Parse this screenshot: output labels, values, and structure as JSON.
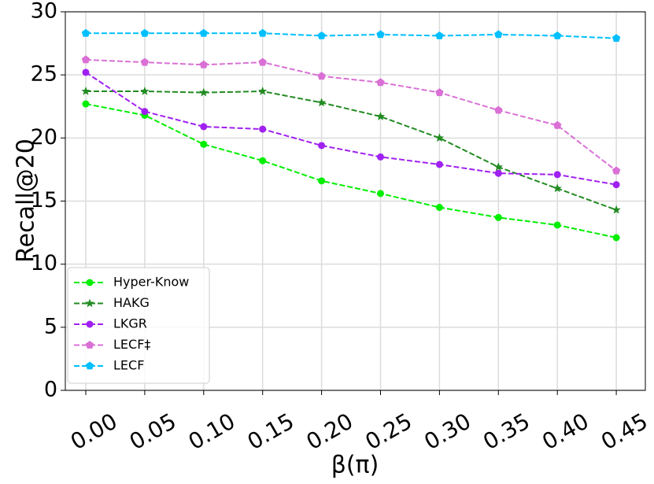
{
  "chart_data": {
    "type": "line",
    "xlabel": "β(π)",
    "ylabel": "Recall@20",
    "categories": [
      "0.00",
      "0.05",
      "0.10",
      "0.15",
      "0.20",
      "0.25",
      "0.30",
      "0.35",
      "0.40",
      "0.45"
    ],
    "series": [
      {
        "name": "Hyper-Know",
        "color": "#00ee00",
        "marker": "circle",
        "values": [
          22.7,
          21.8,
          19.5,
          18.2,
          16.6,
          15.6,
          14.5,
          13.7,
          13.1,
          12.1
        ]
      },
      {
        "name": "HAKG",
        "color": "#228b22",
        "marker": "star",
        "values": [
          23.7,
          23.7,
          23.6,
          23.7,
          22.8,
          21.7,
          20.0,
          17.7,
          16.0,
          14.3
        ]
      },
      {
        "name": "LKGR",
        "color": "#a020f0",
        "marker": "circle",
        "values": [
          25.2,
          22.1,
          20.9,
          20.7,
          19.4,
          18.5,
          17.9,
          17.2,
          17.1,
          16.3
        ]
      },
      {
        "name": "LECF‡",
        "color": "#da70d6",
        "marker": "pentagon",
        "values": [
          26.2,
          26.0,
          25.8,
          26.0,
          24.9,
          24.4,
          23.6,
          22.2,
          21.0,
          17.4
        ]
      },
      {
        "name": "LECF",
        "color": "#00bfff",
        "marker": "pentagon",
        "values": [
          28.3,
          28.3,
          28.3,
          28.3,
          28.1,
          28.2,
          28.1,
          28.2,
          28.1,
          27.9
        ]
      }
    ],
    "ylim": [
      0,
      30
    ],
    "yticks": [
      0,
      5,
      10,
      15,
      20,
      25,
      30
    ],
    "grid": true,
    "legend": "lower left"
  }
}
